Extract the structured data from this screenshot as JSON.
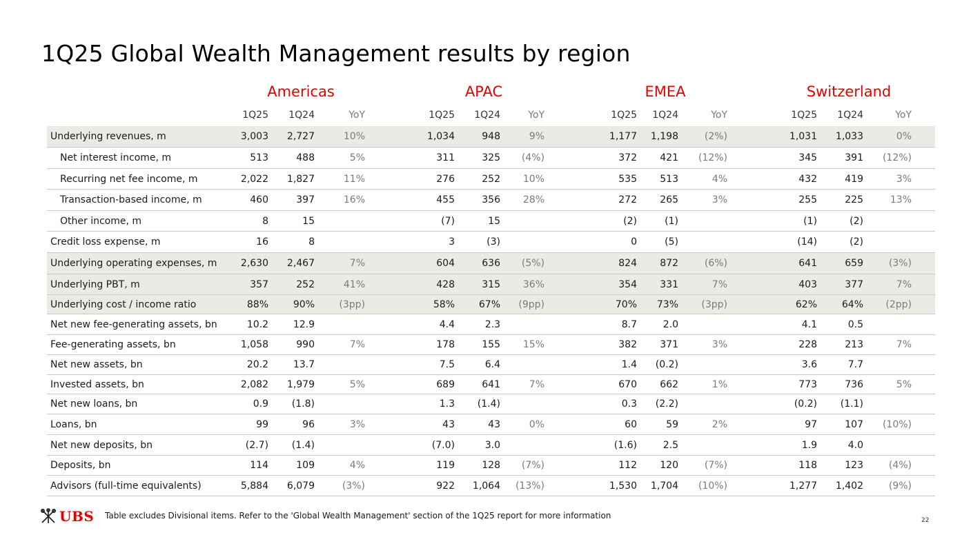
{
  "title": "1Q25 Global Wealth Management results by region",
  "regions": [
    "Americas",
    "APAC",
    "EMEA",
    "Switzerland"
  ],
  "columns": [
    "1Q25",
    "1Q24",
    "YoY"
  ],
  "rows": [
    {
      "label": "Underlying revenues, m",
      "indent": false,
      "shaded": true,
      "values": [
        "3,003",
        "2,727",
        "10%",
        "1,034",
        "948",
        "9%",
        "1,177",
        "1,198",
        "(2%)",
        "1,031",
        "1,033",
        "0%"
      ]
    },
    {
      "label": "Net interest income, m",
      "indent": true,
      "shaded": false,
      "values": [
        "513",
        "488",
        "5%",
        "311",
        "325",
        "(4%)",
        "372",
        "421",
        "(12%)",
        "345",
        "391",
        "(12%)"
      ]
    },
    {
      "label": "Recurring net fee income, m",
      "indent": true,
      "shaded": false,
      "values": [
        "2,022",
        "1,827",
        "11%",
        "276",
        "252",
        "10%",
        "535",
        "513",
        "4%",
        "432",
        "419",
        "3%"
      ]
    },
    {
      "label": "Transaction-based income, m",
      "indent": true,
      "shaded": false,
      "values": [
        "460",
        "397",
        "16%",
        "455",
        "356",
        "28%",
        "272",
        "265",
        "3%",
        "255",
        "225",
        "13%"
      ]
    },
    {
      "label": "Other income, m",
      "indent": true,
      "shaded": false,
      "values": [
        "8",
        "15",
        "",
        "(7)",
        "15",
        "",
        "(2)",
        "(1)",
        "",
        "(1)",
        "(2)",
        ""
      ]
    },
    {
      "label": "Credit loss expense, m",
      "indent": false,
      "shaded": false,
      "values": [
        "16",
        "8",
        "",
        "3",
        "(3)",
        "",
        "0",
        "(5)",
        "",
        "(14)",
        "(2)",
        ""
      ]
    },
    {
      "label": "Underlying operating expenses, m",
      "indent": false,
      "shaded": true,
      "values": [
        "2,630",
        "2,467",
        "7%",
        "604",
        "636",
        "(5%)",
        "824",
        "872",
        "(6%)",
        "641",
        "659",
        "(3%)"
      ]
    },
    {
      "label": "Underlying PBT, m",
      "indent": false,
      "shaded": true,
      "values": [
        "357",
        "252",
        "41%",
        "428",
        "315",
        "36%",
        "354",
        "331",
        "7%",
        "403",
        "377",
        "7%"
      ]
    },
    {
      "label": "Underlying cost / income ratio",
      "indent": false,
      "shaded": true,
      "values": [
        "88%",
        "90%",
        "(3pp)",
        "58%",
        "67%",
        "(9pp)",
        "70%",
        "73%",
        "(3pp)",
        "62%",
        "64%",
        "(2pp)"
      ]
    },
    {
      "label": "Net new fee-generating assets, bn",
      "indent": false,
      "shaded": false,
      "values": [
        "10.2",
        "12.9",
        "",
        "4.4",
        "2.3",
        "",
        "8.7",
        "2.0",
        "",
        "4.1",
        "0.5",
        ""
      ]
    },
    {
      "label": "Fee-generating assets, bn",
      "indent": false,
      "shaded": false,
      "values": [
        "1,058",
        "990",
        "7%",
        "178",
        "155",
        "15%",
        "382",
        "371",
        "3%",
        "228",
        "213",
        "7%"
      ]
    },
    {
      "label": "Net new assets, bn",
      "indent": false,
      "shaded": false,
      "values": [
        "20.2",
        "13.7",
        "",
        "7.5",
        "6.4",
        "",
        "1.4",
        "(0.2)",
        "",
        "3.6",
        "7.7",
        ""
      ]
    },
    {
      "label": "Invested assets, bn",
      "indent": false,
      "shaded": false,
      "values": [
        "2,082",
        "1,979",
        "5%",
        "689",
        "641",
        "7%",
        "670",
        "662",
        "1%",
        "773",
        "736",
        "5%"
      ]
    },
    {
      "label": "Net new loans, bn",
      "indent": false,
      "shaded": false,
      "values": [
        "0.9",
        "(1.8)",
        "",
        "1.3",
        "(1.4)",
        "",
        "0.3",
        "(2.2)",
        "",
        "(0.2)",
        "(1.1)",
        ""
      ]
    },
    {
      "label": "Loans, bn",
      "indent": false,
      "shaded": false,
      "values": [
        "99",
        "96",
        "3%",
        "43",
        "43",
        "0%",
        "60",
        "59",
        "2%",
        "97",
        "107",
        "(10%)"
      ]
    },
    {
      "label": "Net new deposits, bn",
      "indent": false,
      "shaded": false,
      "values": [
        "(2.7)",
        "(1.4)",
        "",
        "(7.0)",
        "3.0",
        "",
        "(1.6)",
        "2.5",
        "",
        "1.9",
        "4.0",
        ""
      ]
    },
    {
      "label": "Deposits, bn",
      "indent": false,
      "shaded": false,
      "values": [
        "114",
        "109",
        "4%",
        "119",
        "128",
        "(7%)",
        "112",
        "120",
        "(7%)",
        "118",
        "123",
        "(4%)"
      ]
    },
    {
      "label": "Advisors (full-time equivalents)",
      "indent": false,
      "shaded": false,
      "values": [
        "5,884",
        "6,079",
        "(3%)",
        "922",
        "1,064",
        "(13%)",
        "1,530",
        "1,704",
        "(10%)",
        "1,277",
        "1,402",
        "(9%)"
      ]
    }
  ],
  "footer": {
    "logo_text": "UBS",
    "logo_icon": "ubs-keys-icon",
    "note": "Table excludes Divisional items. Refer to the 'Global Wealth Management' section of the 1Q25 report for more information",
    "page_number": "22"
  },
  "colors": {
    "accent": "#e60000",
    "shaded_row": "#ebebe6",
    "yoy_text": "#7a7a7a"
  }
}
